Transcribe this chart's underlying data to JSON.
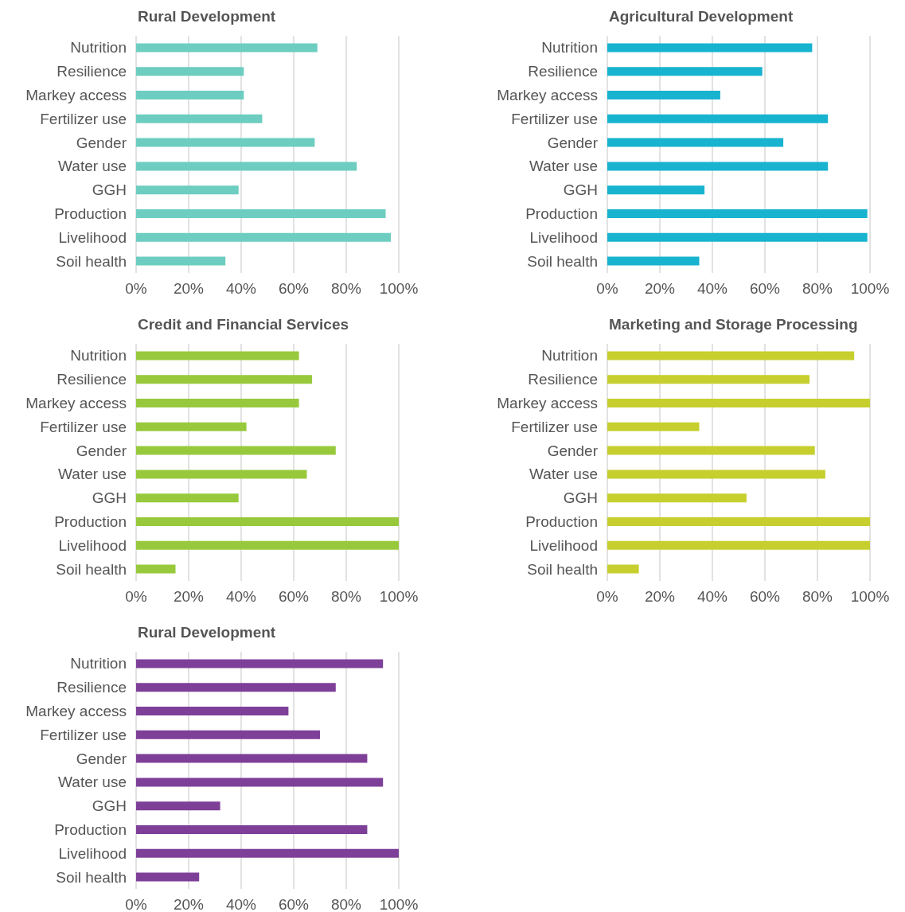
{
  "chart_data": [
    {
      "type": "bar",
      "orientation": "horizontal",
      "title": "Rural Development",
      "categories": [
        "Nutrition",
        "Resilience",
        "Markey access",
        "Fertilizer use",
        "Gender",
        "Water use",
        "GGH",
        "Production",
        "Livelihood",
        "Soil health"
      ],
      "values": [
        69,
        41,
        41,
        48,
        68,
        84,
        39,
        95,
        97,
        34
      ],
      "color": "#6ccdc0",
      "xlim": [
        0,
        100
      ],
      "xticks": [
        {
          "value": 0,
          "label": "0%"
        },
        {
          "value": 20,
          "label": "20%"
        },
        {
          "value": 40,
          "label": "40%"
        },
        {
          "value": 60,
          "label": "60%"
        },
        {
          "value": 80,
          "label": "80%"
        },
        {
          "value": 100,
          "label": "100%"
        }
      ],
      "grid": "x"
    },
    {
      "type": "bar",
      "orientation": "horizontal",
      "title": "Agricultural Development",
      "categories": [
        "Nutrition",
        "Resilience",
        "Markey access",
        "Fertilizer use",
        "Gender",
        "Water use",
        "GGH",
        "Production",
        "Livelihood",
        "Soil health"
      ],
      "values": [
        78,
        59,
        43,
        84,
        67,
        84,
        37,
        99,
        99,
        35
      ],
      "color": "#17b3cf",
      "xlim": [
        0,
        100
      ],
      "xticks": [
        {
          "value": 0,
          "label": "0%"
        },
        {
          "value": 20,
          "label": "20%"
        },
        {
          "value": 40,
          "label": "40%"
        },
        {
          "value": 60,
          "label": "60%"
        },
        {
          "value": 80,
          "label": "80%"
        },
        {
          "value": 100,
          "label": "100%"
        }
      ],
      "grid": "x"
    },
    {
      "type": "bar",
      "orientation": "horizontal",
      "title": "Credit and Financial Services",
      "categories": [
        "Nutrition",
        "Resilience",
        "Markey access",
        "Fertilizer use",
        "Gender",
        "Water use",
        "GGH",
        "Production",
        "Livelihood",
        "Soil health"
      ],
      "values": [
        62,
        67,
        62,
        42,
        76,
        65,
        39,
        100,
        100,
        15
      ],
      "color": "#98c93c",
      "xlim": [
        0,
        100
      ],
      "xticks": [
        {
          "value": 0,
          "label": "0%"
        },
        {
          "value": 20,
          "label": "20%"
        },
        {
          "value": 40,
          "label": "40%"
        },
        {
          "value": 60,
          "label": "60%"
        },
        {
          "value": 80,
          "label": "80%"
        },
        {
          "value": 100,
          "label": "100%"
        }
      ],
      "grid": "x"
    },
    {
      "type": "bar",
      "orientation": "horizontal",
      "title": "Marketing and Storage Processing",
      "categories": [
        "Nutrition",
        "Resilience",
        "Markey access",
        "Fertilizer use",
        "Gender",
        "Water use",
        "GGH",
        "Production",
        "Livelihood",
        "Soil health"
      ],
      "values": [
        94,
        77,
        100,
        35,
        79,
        83,
        53,
        100,
        100,
        12
      ],
      "color": "#c6cf2e",
      "xlim": [
        0,
        100
      ],
      "xticks": [
        {
          "value": 0,
          "label": "0%"
        },
        {
          "value": 20,
          "label": "20%"
        },
        {
          "value": 40,
          "label": "40%"
        },
        {
          "value": 60,
          "label": "60%"
        },
        {
          "value": 80,
          "label": "80%"
        },
        {
          "value": 100,
          "label": "100%"
        }
      ],
      "grid": "x"
    },
    {
      "type": "bar",
      "orientation": "horizontal",
      "title": "Rural Development",
      "categories": [
        "Nutrition",
        "Resilience",
        "Markey access",
        "Fertilizer use",
        "Gender",
        "Water use",
        "GGH",
        "Production",
        "Livelihood",
        "Soil health"
      ],
      "values": [
        94,
        76,
        58,
        70,
        88,
        94,
        32,
        88,
        100,
        24
      ],
      "color": "#7e3f98",
      "xlim": [
        0,
        100
      ],
      "xticks": [
        {
          "value": 0,
          "label": "0%"
        },
        {
          "value": 20,
          "label": "20%"
        },
        {
          "value": 40,
          "label": "40%"
        },
        {
          "value": 60,
          "label": "60%"
        },
        {
          "value": 80,
          "label": "80%"
        },
        {
          "value": 100,
          "label": "100%"
        }
      ],
      "grid": "x"
    }
  ]
}
